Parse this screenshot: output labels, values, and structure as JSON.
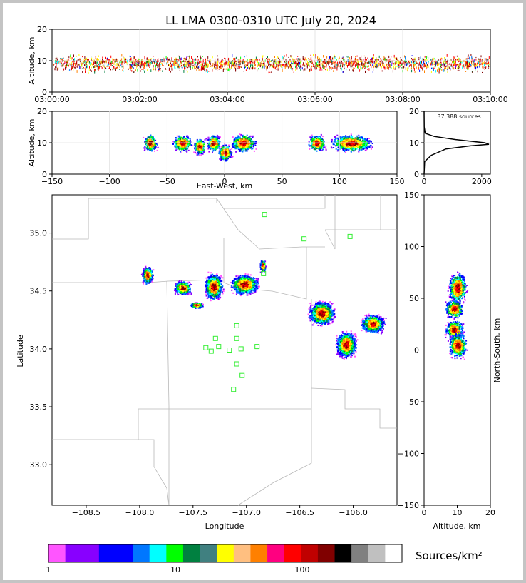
{
  "chart_data": [
    {
      "type": "scatter",
      "name": "time-altitude",
      "title": "LL LMA 0300-0310 UTC July 20, 2024",
      "xlabel": "",
      "ylabel": "Altitude, km",
      "xticks": [
        "03:00:00",
        "03:02:00",
        "03:04:00",
        "03:06:00",
        "03:08:00",
        "03:10:00"
      ],
      "xlim_minutes": [
        0,
        10
      ],
      "ylim": [
        0,
        20
      ],
      "yticks": [
        "0",
        "10",
        "20"
      ],
      "description_values": {
        "typical_altitude_km": 9,
        "altitude_spread_km": [
          3,
          16
        ]
      }
    },
    {
      "type": "heatmap",
      "name": "east-west-altitude",
      "xlabel": "East-West, km",
      "ylabel": "Altitude, km",
      "xlim": [
        -150,
        150
      ],
      "ylim": [
        0,
        20
      ],
      "xticks": [
        "−150",
        "−100",
        "−50",
        "0",
        "50",
        "100",
        "150"
      ],
      "yticks": [
        "0",
        "10",
        "20"
      ],
      "clusters": [
        {
          "x": -65,
          "width": 10,
          "alt": 10
        },
        {
          "x": -37,
          "width": 14,
          "alt": 10
        },
        {
          "x": -22,
          "width": 8,
          "alt": 9
        },
        {
          "x": -10,
          "width": 10,
          "alt": 10
        },
        {
          "x": 0,
          "width": 10,
          "alt": 7
        },
        {
          "x": 16,
          "width": 18,
          "alt": 10
        },
        {
          "x": 80,
          "width": 12,
          "alt": 10
        },
        {
          "x": 110,
          "width": 30,
          "alt": 10
        }
      ]
    },
    {
      "type": "line",
      "name": "altitude-histogram",
      "annotation": "37,388 sources",
      "xlim": [
        0,
        2300
      ],
      "ylim": [
        0,
        20
      ],
      "xticks": [
        "0",
        "2000"
      ],
      "yticks": [
        "0",
        "10",
        "20"
      ],
      "profile": [
        {
          "alt": 0,
          "count": 0
        },
        {
          "alt": 4,
          "count": 20
        },
        {
          "alt": 6,
          "count": 250
        },
        {
          "alt": 8,
          "count": 750
        },
        {
          "alt": 9,
          "count": 1600
        },
        {
          "alt": 9.5,
          "count": 2250
        },
        {
          "alt": 10,
          "count": 2100
        },
        {
          "alt": 11,
          "count": 1100
        },
        {
          "alt": 12,
          "count": 350
        },
        {
          "alt": 13,
          "count": 40
        },
        {
          "alt": 15,
          "count": 5
        },
        {
          "alt": 20,
          "count": 0
        }
      ]
    },
    {
      "type": "heatmap",
      "name": "plan-view",
      "xlabel": "Longitude",
      "ylabel": "Latitude",
      "xlim": [
        -108.82,
        -105.59
      ],
      "ylim": [
        32.65,
        35.33
      ],
      "xticks": [
        "−108.5",
        "−108.0",
        "−107.5",
        "−107.0",
        "−106.5",
        "−106.0"
      ],
      "yticks": [
        "33.0",
        "33.5",
        "34.0",
        "34.5",
        "35.0"
      ],
      "stations": [
        {
          "lon": -106.83,
          "lat": 35.16
        },
        {
          "lon": -106.46,
          "lat": 34.95
        },
        {
          "lon": -106.03,
          "lat": 34.97
        },
        {
          "lon": -106.84,
          "lat": 34.65
        },
        {
          "lon": -107.09,
          "lat": 34.2
        },
        {
          "lon": -107.29,
          "lat": 34.09
        },
        {
          "lon": -107.09,
          "lat": 34.09
        },
        {
          "lon": -107.38,
          "lat": 34.01
        },
        {
          "lon": -107.26,
          "lat": 34.02
        },
        {
          "lon": -107.33,
          "lat": 33.98
        },
        {
          "lon": -107.16,
          "lat": 33.99
        },
        {
          "lon": -107.05,
          "lat": 34.0
        },
        {
          "lon": -106.9,
          "lat": 34.02
        },
        {
          "lon": -107.09,
          "lat": 33.87
        },
        {
          "lon": -107.04,
          "lat": 33.77
        },
        {
          "lon": -107.12,
          "lat": 33.65
        }
      ],
      "clusters": [
        {
          "lon": -107.93,
          "lat": 34.64,
          "w": 0.06,
          "h": 0.09
        },
        {
          "lon": -107.6,
          "lat": 34.53,
          "w": 0.09,
          "h": 0.07
        },
        {
          "lon": -107.47,
          "lat": 34.38,
          "w": 0.07,
          "h": 0.03
        },
        {
          "lon": -107.31,
          "lat": 34.54,
          "w": 0.1,
          "h": 0.13
        },
        {
          "lon": -107.02,
          "lat": 34.56,
          "w": 0.15,
          "h": 0.1
        },
        {
          "lon": -106.85,
          "lat": 34.72,
          "w": 0.03,
          "h": 0.07
        },
        {
          "lon": -106.3,
          "lat": 34.31,
          "w": 0.14,
          "h": 0.12
        },
        {
          "lon": -106.07,
          "lat": 34.04,
          "w": 0.11,
          "h": 0.13
        },
        {
          "lon": -105.82,
          "lat": 34.22,
          "w": 0.13,
          "h": 0.09
        }
      ]
    },
    {
      "type": "heatmap",
      "name": "altitude-north-south",
      "xlabel": "Altitude, km",
      "ylabel": "North-South, km",
      "xlim": [
        0,
        20
      ],
      "ylim": [
        -150,
        150
      ],
      "xticks": [
        "0",
        "10",
        "20"
      ],
      "yticks": [
        "−150",
        "−100",
        "−50",
        "0",
        "50",
        "100",
        "150"
      ],
      "clusters": [
        {
          "alt": 10,
          "ns": 60,
          "h": 25
        },
        {
          "alt": 9,
          "ns": 40,
          "h": 15
        },
        {
          "alt": 9,
          "ns": 20,
          "h": 15
        },
        {
          "alt": 10,
          "ns": 5,
          "h": 20
        }
      ]
    },
    {
      "type": "legend",
      "name": "colorbar",
      "label": "Sources/km²",
      "ticks": [
        "1",
        "10",
        "100"
      ],
      "colors": [
        "#ff55ff",
        "#8800ff",
        "#8800ff",
        "#0000ff",
        "#0000ff",
        "#0077ff",
        "#00ffff",
        "#00ff00",
        "#008040",
        "#408080",
        "#ffff00",
        "#ffbf80",
        "#ff8000",
        "#ff0080",
        "#ff0000",
        "#c00000",
        "#800000",
        "#000000",
        "#808080",
        "#c0c0c0",
        "#ffffff"
      ]
    }
  ]
}
